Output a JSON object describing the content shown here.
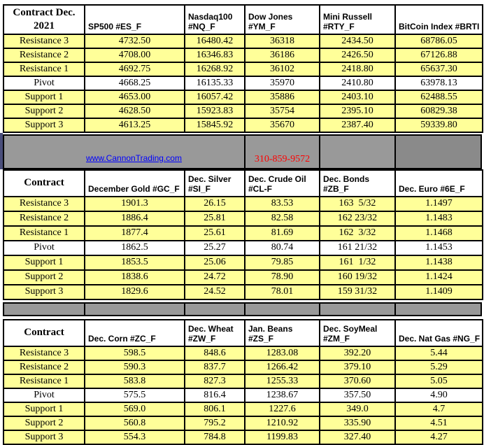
{
  "colors": {
    "row_yellow": "#FFFF99",
    "band_gray": "#999999",
    "band_gray_dark": "#8A8A8A",
    "edge_navy": "#4A4E7B",
    "link_blue": "#0000FF",
    "phone_red": "#FF0000"
  },
  "band": {
    "link": "www.CannonTrading.com",
    "phone": "310-859-9572"
  },
  "tables": [
    {
      "name": "stock-indices",
      "columns": [
        "Contract Dec.\n2021",
        "SP500 #ES_F",
        "Nasdaq100\n#NQ_F",
        "Dow Jones\n#YM_F",
        "Mini Russell\n#RTY_F",
        "BitCoin Index #BRTI"
      ],
      "rows": [
        [
          "Resistance 3",
          "4732.50",
          "16480.42",
          "36318",
          "2434.50",
          "68786.05"
        ],
        [
          "Resistance 2",
          "4708.00",
          "16346.83",
          "36186",
          "2426.50",
          "67126.88"
        ],
        [
          "Resistance 1",
          "4692.75",
          "16268.92",
          "36102",
          "2418.80",
          "65637.30"
        ],
        [
          "Pivot",
          "4668.25",
          "16135.33",
          "35970",
          "2410.80",
          "63978.13"
        ],
        [
          "Support 1",
          "4653.00",
          "16057.42",
          "35886",
          "2403.10",
          "62488.55"
        ],
        [
          "Support 2",
          "4628.50",
          "15923.83",
          "35754",
          "2395.10",
          "60829.38"
        ],
        [
          "Support 3",
          "4613.25",
          "15845.92",
          "35670",
          "2387.40",
          "59339.80"
        ]
      ]
    },
    {
      "name": "metals-energy-bonds-currency",
      "columns": [
        "Contract",
        "December Gold #GC_F",
        "Dec. Silver\n#SI_F",
        "Dec. Crude Oil\n#CL-F",
        "Dec. Bonds  #ZB_F",
        "Dec.  Euro #6E_F"
      ],
      "rows": [
        [
          "Resistance 3",
          "1901.3",
          "26.15",
          "83.53",
          "163  5/32",
          "1.1497"
        ],
        [
          "Resistance 2",
          "1886.4",
          "25.81",
          "82.58",
          "162 23/32",
          "1.1483"
        ],
        [
          "Resistance 1",
          "1877.4",
          "25.61",
          "81.69",
          "162  3/32",
          "1.1468"
        ],
        [
          "Pivot",
          "1862.5",
          "25.27",
          "80.74",
          "161 21/32",
          "1.1453"
        ],
        [
          "Support 1",
          "1853.5",
          "25.06",
          "79.85",
          "161  1/32",
          "1.1438"
        ],
        [
          "Support 2",
          "1838.6",
          "24.72",
          "78.90",
          "160 19/32",
          "1.1424"
        ],
        [
          "Support 3",
          "1829.6",
          "24.52",
          "78.01",
          "159 31/32",
          "1.1409"
        ]
      ]
    },
    {
      "name": "grains-natgas",
      "columns": [
        "Contract",
        "Dec. Corn #ZC_F",
        "Dec.  Wheat\n#ZW_F",
        "Jan. Beans #ZS_F",
        "Dec. SoyMeal\n#ZM_F",
        "Dec. Nat Gas #NG_F"
      ],
      "rows": [
        [
          "Resistance 3",
          "598.5",
          "848.6",
          "1283.08",
          "392.20",
          "5.44"
        ],
        [
          "Resistance 2",
          "590.3",
          "837.7",
          "1266.42",
          "379.10",
          "5.29"
        ],
        [
          "Resistance 1",
          "583.8",
          "827.3",
          "1255.33",
          "370.60",
          "5.05"
        ],
        [
          "Pivot",
          "575.5",
          "816.4",
          "1238.67",
          "357.50",
          "4.90"
        ],
        [
          "Support 1",
          "569.0",
          "806.1",
          "1227.6",
          "349.0",
          "4.7"
        ],
        [
          "Support 2",
          "560.8",
          "795.2",
          "1210.92",
          "335.90",
          "4.51"
        ],
        [
          "Support 3",
          "554.3",
          "784.8",
          "1199.83",
          "327.40",
          "4.27"
        ]
      ]
    }
  ]
}
